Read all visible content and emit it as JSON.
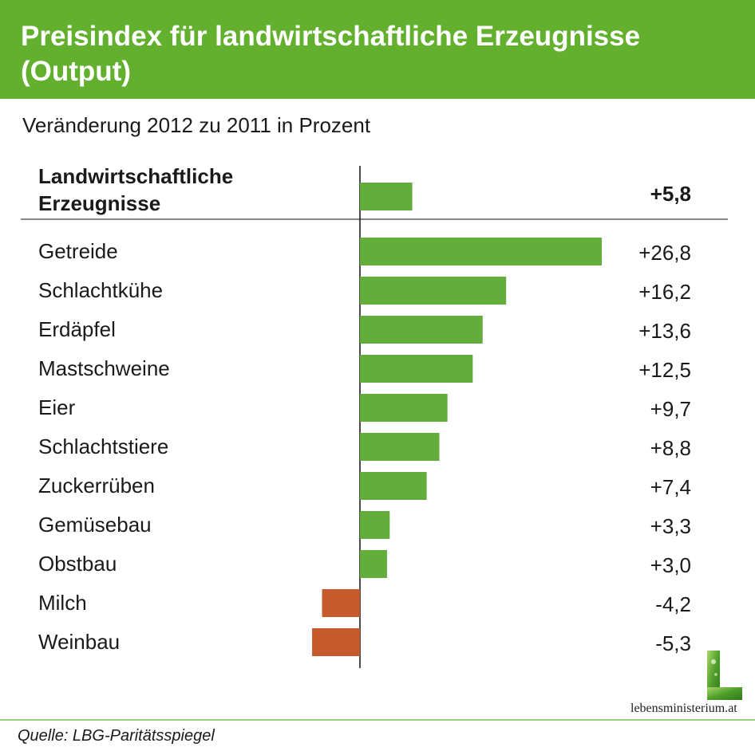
{
  "title": "Preisindex für landwirtschaftliche Erzeugnisse (Output)",
  "subtitle": "Veränderung 2012 zu 2011 in Prozent",
  "source": "Quelle: LBG-Paritätsspiegel",
  "logo_text": "lebensministerium.at",
  "colors": {
    "header": "#62b02e",
    "positive": "#62ad3c",
    "negative": "#c55a2d"
  },
  "chart_data": {
    "type": "bar",
    "orientation": "horizontal",
    "title": "Preisindex für landwirtschaftliche Erzeugnisse (Output)",
    "subtitle": "Veränderung 2012 zu 2011 in Prozent",
    "total": {
      "category": "Landwirtschaftliche Erzeugnisse",
      "value": 5.8,
      "label": "+5,8"
    },
    "categories": [
      "Getreide",
      "Schlachtkühe",
      "Erdäpfel",
      "Mastschweine",
      "Eier",
      "Schlachtstiere",
      "Zuckerrüben",
      "Gemüsebau",
      "Obstbau",
      "Milch",
      "Weinbau"
    ],
    "values": [
      26.8,
      16.2,
      13.6,
      12.5,
      9.7,
      8.8,
      7.4,
      3.3,
      3.0,
      -4.2,
      -5.3
    ],
    "value_labels": [
      "+26,8",
      "+16,2",
      "+13,6",
      "+12,5",
      "+9,7",
      "+8,8",
      "+7,4",
      "+3,3",
      "+3,0",
      "-4,2",
      "-5,3"
    ],
    "xlim": [
      -5.3,
      26.8
    ],
    "xlabel": "",
    "ylabel": ""
  }
}
